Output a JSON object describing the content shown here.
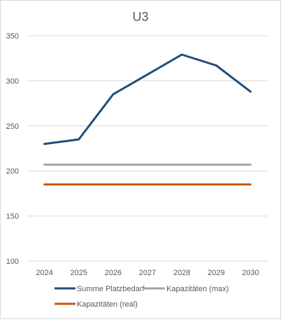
{
  "chart_data": {
    "type": "line",
    "title": "U3",
    "xlabel": "",
    "ylabel": "",
    "categories": [
      "2024",
      "2025",
      "2026",
      "2027",
      "2028",
      "2029",
      "2030"
    ],
    "ylim": [
      100,
      350
    ],
    "yticks": [
      100,
      150,
      200,
      250,
      300,
      350
    ],
    "grid": "horizontal",
    "legend_position": "bottom",
    "series": [
      {
        "name": "Summe Platzbedarf",
        "color": "#1f4e79",
        "values": [
          230,
          235,
          285,
          307,
          329,
          317,
          288
        ]
      },
      {
        "name": "Kapazitäten (max)",
        "color": "#a5a5a5",
        "values": [
          207,
          207,
          207,
          207,
          207,
          207,
          207
        ]
      },
      {
        "name": "Kapazitäten (real)",
        "color": "#c55a11",
        "values": [
          185,
          185,
          185,
          185,
          185,
          185,
          185
        ]
      }
    ]
  }
}
